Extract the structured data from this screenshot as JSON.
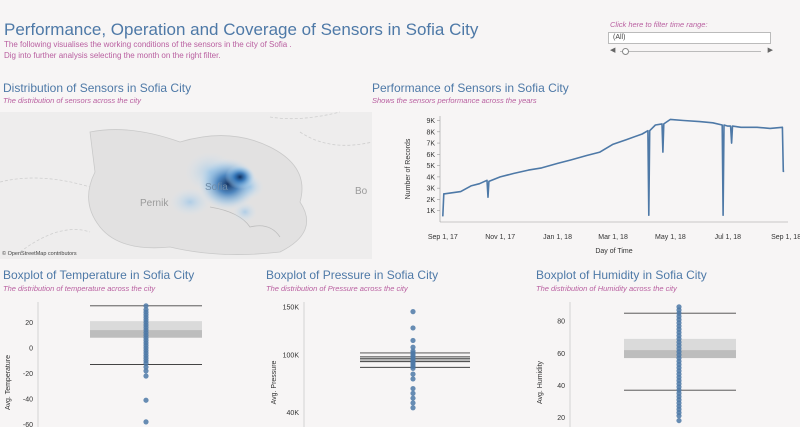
{
  "header": {
    "title": "Performance, Operation and Coverage of Sensors in Sofia City",
    "subtitle_line1": "The following visualises the working conditions of the sensors in the city of Sofia .",
    "subtitle_line2": "Dig into further analysis selecting the month on the right filter."
  },
  "filter": {
    "label": "Click here to filter time range:",
    "value": "(All)",
    "left_arrow": "◀",
    "right_arrow": "▶"
  },
  "map_section": {
    "title": "Distribution of Sensors in Sofia City",
    "subtitle": "The distribution of  sensors across the city",
    "city_pernik": "Pernik",
    "city_sofia": "Sofia",
    "city_right": "Bo",
    "attribution": "© OpenStreetMap contributors"
  },
  "line_section": {
    "title": "Performance of Sensors in Sofia City",
    "subtitle": "Shows the sensors performance across the years"
  },
  "box_temp": {
    "title": "Boxplot of Temperature in Sofia City",
    "subtitle": "The distribution of  temperature across the city"
  },
  "box_pressure": {
    "title": "Boxplot of Pressure in Sofia City",
    "subtitle": "The distribution of  Pressure across the city"
  },
  "box_humidity": {
    "title": "Boxplot of Humidity in Sofia City",
    "subtitle": "The distribution of  Humidity across the city"
  },
  "colors": {
    "accent": "#4e79a7",
    "subtitle": "#b95fa0"
  },
  "chart_data": [
    {
      "type": "line",
      "title": "Performance of Sensors in Sofia City",
      "xlabel": "Day of Time",
      "ylabel": "Number of Records",
      "x_ticks": [
        "Sep 1, 17",
        "Nov 1, 17",
        "Jan 1, 18",
        "Mar 1, 18",
        "May 1, 18",
        "Jul 1, 18",
        "Sep 1, 18"
      ],
      "y_ticks": [
        "1K",
        "2K",
        "3K",
        "4K",
        "5K",
        "6K",
        "7K",
        "8K",
        "9K"
      ],
      "ylim": [
        0,
        9400
      ],
      "xlim": [
        "2017-08-29",
        "2018-09-03"
      ],
      "x": [
        "2017-09-01",
        "2017-09-02",
        "2017-09-03",
        "2017-09-20",
        "2017-10-01",
        "2017-10-10",
        "2017-10-18",
        "2017-10-19",
        "2017-10-20",
        "2017-11-01",
        "2017-11-15",
        "2017-12-01",
        "2017-12-15",
        "2018-01-01",
        "2018-01-15",
        "2018-02-01",
        "2018-02-15",
        "2018-03-01",
        "2018-03-15",
        "2018-04-01",
        "2018-04-07",
        "2018-04-08",
        "2018-04-09",
        "2018-04-15",
        "2018-04-22",
        "2018-04-23",
        "2018-04-24",
        "2018-05-01",
        "2018-05-15",
        "2018-06-01",
        "2018-06-15",
        "2018-06-25",
        "2018-06-26",
        "2018-06-27",
        "2018-07-01",
        "2018-07-04",
        "2018-07-05",
        "2018-07-06",
        "2018-07-15",
        "2018-08-01",
        "2018-08-15",
        "2018-08-28",
        "2018-08-29",
        "2018-08-30"
      ],
      "y": [
        500,
        2500,
        2500,
        2700,
        3200,
        3400,
        3700,
        2200,
        3600,
        4000,
        4300,
        4600,
        4800,
        5200,
        5500,
        5900,
        6200,
        6900,
        7300,
        7800,
        8100,
        600,
        8100,
        8600,
        8700,
        6200,
        8700,
        9100,
        9000,
        8900,
        8800,
        8600,
        600,
        8600,
        8500,
        8500,
        7000,
        8500,
        8400,
        8400,
        8300,
        8400,
        4500,
        4500
      ]
    },
    {
      "type": "boxplot",
      "title": "Boxplot of Temperature in Sofia City",
      "ylabel": "Avg. Temperature",
      "y_ticks": [
        -60,
        -40,
        -20,
        0,
        20
      ],
      "ylim": [
        -62,
        36
      ],
      "whisker_low": -13,
      "q1": 8,
      "median": 14,
      "q3": 21,
      "whisker_high": 33,
      "points": [
        33,
        30,
        28,
        26,
        24,
        22,
        20,
        18,
        16,
        14,
        12,
        10,
        8,
        6,
        4,
        2,
        0,
        -2,
        -4,
        -6,
        -8,
        -10,
        -12,
        -15,
        -18,
        -22,
        -41,
        -58
      ]
    },
    {
      "type": "boxplot",
      "title": "Boxplot of Pressure in Sofia City",
      "ylabel": "Avg. Pressure",
      "y_ticks": [
        "40K",
        "100K",
        "150K"
      ],
      "y_tick_values": [
        40000,
        100000,
        150000
      ],
      "ylim": [
        25000,
        155000
      ],
      "whisker_low": 87000,
      "q1": 93000,
      "median": 96000,
      "q3": 98000,
      "whisker_high": 102000,
      "points": [
        145000,
        128000,
        115000,
        108000,
        104000,
        102000,
        100000,
        98000,
        96000,
        94000,
        92000,
        90000,
        88000,
        86000,
        80000,
        75000,
        65000,
        60000,
        55000,
        50000,
        45000
      ]
    },
    {
      "type": "boxplot",
      "title": "Boxplot of Humidity in Sofia City",
      "ylabel": "Avg. Humidity",
      "y_ticks": [
        20,
        40,
        60,
        80
      ],
      "ylim": [
        14,
        92
      ],
      "whisker_low": 37,
      "q1": 57,
      "median": 62,
      "q3": 69,
      "whisker_high": 85,
      "points": [
        89,
        87,
        85,
        83,
        81,
        79,
        77,
        75,
        73,
        71,
        69,
        67,
        65,
        63,
        61,
        59,
        57,
        55,
        53,
        51,
        49,
        47,
        45,
        43,
        41,
        39,
        37,
        35,
        33,
        31,
        29,
        27,
        25,
        23,
        21,
        18
      ]
    }
  ]
}
